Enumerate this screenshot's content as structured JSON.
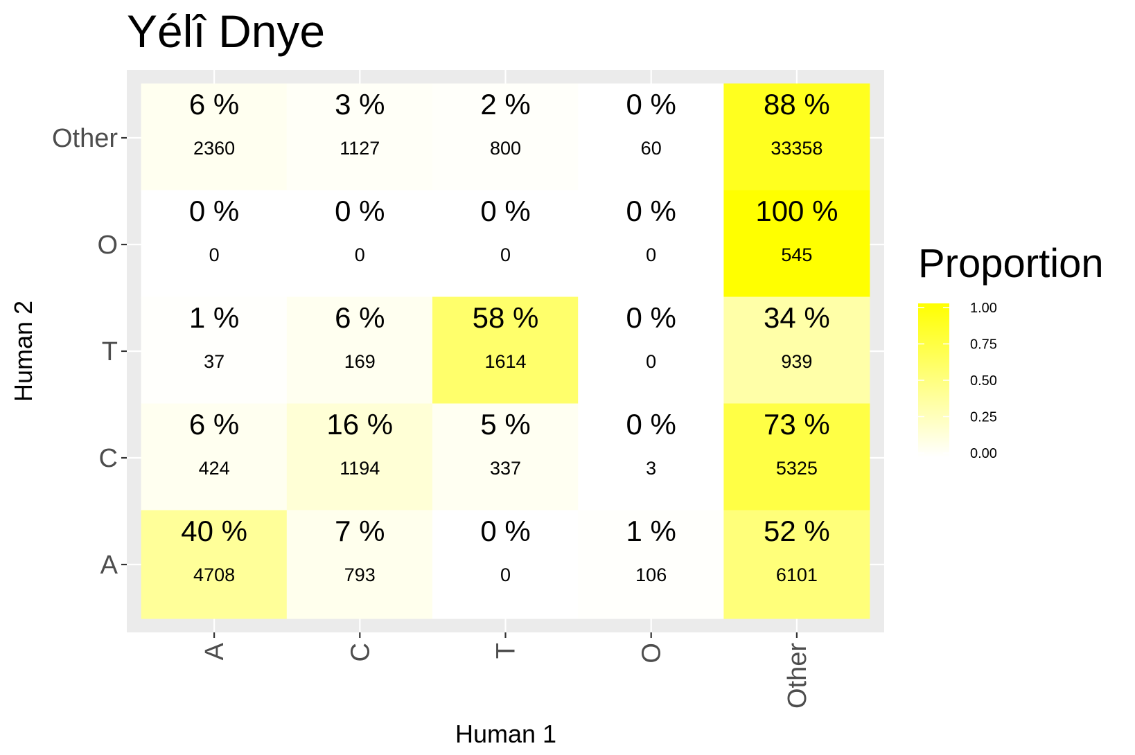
{
  "chart_data": {
    "type": "heatmap",
    "title": "Yélî Dnye",
    "xlabel": "Human 1",
    "ylabel": "Human 2",
    "x_categories": [
      "A",
      "C",
      "T",
      "O",
      "Other"
    ],
    "y_categories": [
      "A",
      "C",
      "T",
      "O",
      "Other"
    ],
    "cells": [
      {
        "x": "A",
        "y": "Other",
        "proportion": 0.06,
        "label": "6 %",
        "count": "2360"
      },
      {
        "x": "C",
        "y": "Other",
        "proportion": 0.03,
        "label": "3 %",
        "count": "1127"
      },
      {
        "x": "T",
        "y": "Other",
        "proportion": 0.02,
        "label": "2 %",
        "count": "800"
      },
      {
        "x": "O",
        "y": "Other",
        "proportion": 0.0,
        "label": "0 %",
        "count": "60"
      },
      {
        "x": "Other",
        "y": "Other",
        "proportion": 0.88,
        "label": "88 %",
        "count": "33358"
      },
      {
        "x": "A",
        "y": "O",
        "proportion": 0.0,
        "label": "0 %",
        "count": "0"
      },
      {
        "x": "C",
        "y": "O",
        "proportion": 0.0,
        "label": "0 %",
        "count": "0"
      },
      {
        "x": "T",
        "y": "O",
        "proportion": 0.0,
        "label": "0 %",
        "count": "0"
      },
      {
        "x": "O",
        "y": "O",
        "proportion": 0.0,
        "label": "0 %",
        "count": "0"
      },
      {
        "x": "Other",
        "y": "O",
        "proportion": 1.0,
        "label": "100 %",
        "count": "545"
      },
      {
        "x": "A",
        "y": "T",
        "proportion": 0.01,
        "label": "1 %",
        "count": "37"
      },
      {
        "x": "C",
        "y": "T",
        "proportion": 0.06,
        "label": "6 %",
        "count": "169"
      },
      {
        "x": "T",
        "y": "T",
        "proportion": 0.58,
        "label": "58 %",
        "count": "1614"
      },
      {
        "x": "O",
        "y": "T",
        "proportion": 0.0,
        "label": "0 %",
        "count": "0"
      },
      {
        "x": "Other",
        "y": "T",
        "proportion": 0.34,
        "label": "34 %",
        "count": "939"
      },
      {
        "x": "A",
        "y": "C",
        "proportion": 0.06,
        "label": "6 %",
        "count": "424"
      },
      {
        "x": "C",
        "y": "C",
        "proportion": 0.16,
        "label": "16 %",
        "count": "1194"
      },
      {
        "x": "T",
        "y": "C",
        "proportion": 0.05,
        "label": "5 %",
        "count": "337"
      },
      {
        "x": "O",
        "y": "C",
        "proportion": 0.0,
        "label": "0 %",
        "count": "3"
      },
      {
        "x": "Other",
        "y": "C",
        "proportion": 0.73,
        "label": "73 %",
        "count": "5325"
      },
      {
        "x": "A",
        "y": "A",
        "proportion": 0.4,
        "label": "40 %",
        "count": "4708"
      },
      {
        "x": "C",
        "y": "A",
        "proportion": 0.07,
        "label": "7 %",
        "count": "793"
      },
      {
        "x": "T",
        "y": "A",
        "proportion": 0.0,
        "label": "0 %",
        "count": "0"
      },
      {
        "x": "O",
        "y": "A",
        "proportion": 0.01,
        "label": "1 %",
        "count": "106"
      },
      {
        "x": "Other",
        "y": "A",
        "proportion": 0.52,
        "label": "52 %",
        "count": "6101"
      }
    ],
    "legend": {
      "title": "Proportion",
      "ticks": [
        "0.00",
        "0.25",
        "0.50",
        "0.75",
        "1.00"
      ],
      "range": [
        0,
        1
      ],
      "low_color": "#ffffff",
      "high_color": "#ffff00"
    },
    "panel_background": "#ebebeb",
    "grid": true
  }
}
